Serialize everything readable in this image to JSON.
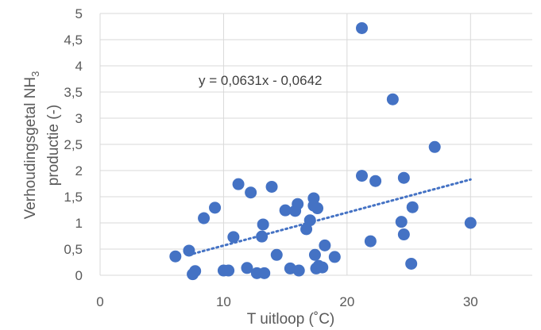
{
  "chart_data": {
    "type": "scatter",
    "xlabel": "T uitloop (˚C)",
    "ylabel_line1": "Verhoudingsgetal NH",
    "ylabel_subscript": "3",
    "ylabel_line2": "productie (-)",
    "xlim": [
      0,
      35
    ],
    "ylim": [
      0,
      5
    ],
    "x_ticks": [
      0,
      10,
      20,
      30
    ],
    "x_tick_labels": [
      "0",
      "10",
      "20",
      "30"
    ],
    "y_ticks": [
      0,
      0.5,
      1,
      1.5,
      2,
      2.5,
      3,
      3.5,
      4,
      4.5,
      5
    ],
    "y_tick_labels": [
      "0",
      "0,5",
      "1",
      "1,5",
      "2",
      "2,5",
      "3",
      "3,5",
      "4",
      "4,5",
      "5"
    ],
    "grid": true,
    "trendline": {
      "equation": "y = 0,0631x - 0,0642",
      "slope": 0.0631,
      "intercept": -0.0642,
      "x_range": [
        7.2,
        30
      ]
    },
    "colors": {
      "points": "#4472c4",
      "grid": "#d9d9d9",
      "text": "#595959"
    },
    "points": [
      [
        6.1,
        0.36
      ],
      [
        7.2,
        0.47
      ],
      [
        7.5,
        0.02
      ],
      [
        7.7,
        0.08
      ],
      [
        8.4,
        1.09
      ],
      [
        9.3,
        1.29
      ],
      [
        10.0,
        0.09
      ],
      [
        10.4,
        0.09
      ],
      [
        10.8,
        0.73
      ],
      [
        11.2,
        1.74
      ],
      [
        11.9,
        0.14
      ],
      [
        12.2,
        1.58
      ],
      [
        12.7,
        0.04
      ],
      [
        13.1,
        0.74
      ],
      [
        13.2,
        0.97
      ],
      [
        13.3,
        0.04
      ],
      [
        13.9,
        1.69
      ],
      [
        14.3,
        0.39
      ],
      [
        15.0,
        1.24
      ],
      [
        15.4,
        0.13
      ],
      [
        15.8,
        1.23
      ],
      [
        16.0,
        1.36
      ],
      [
        16.1,
        0.09
      ],
      [
        16.7,
        0.88
      ],
      [
        17.0,
        1.05
      ],
      [
        17.3,
        1.47
      ],
      [
        17.3,
        1.33
      ],
      [
        17.4,
        0.39
      ],
      [
        17.5,
        0.13
      ],
      [
        17.6,
        1.28
      ],
      [
        17.7,
        0.18
      ],
      [
        18.0,
        0.15
      ],
      [
        18.2,
        0.57
      ],
      [
        19.0,
        0.35
      ],
      [
        21.2,
        4.72
      ],
      [
        21.2,
        1.9
      ],
      [
        21.9,
        0.65
      ],
      [
        22.3,
        1.8
      ],
      [
        23.7,
        3.36
      ],
      [
        24.4,
        1.02
      ],
      [
        24.6,
        0.78
      ],
      [
        24.6,
        1.86
      ],
      [
        25.2,
        0.22
      ],
      [
        25.3,
        1.3
      ],
      [
        27.1,
        2.45
      ],
      [
        30.0,
        1.0
      ]
    ]
  }
}
